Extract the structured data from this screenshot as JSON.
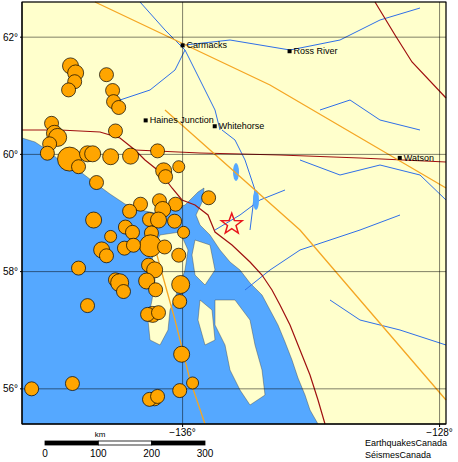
{
  "chart_data": {
    "type": "map",
    "xlim": [
      -141,
      -127.8
    ],
    "ylim": [
      55.4,
      62.6
    ],
    "xticks": [
      {
        "value": -136,
        "label": "−136°"
      },
      {
        "value": -128,
        "label": "−128°"
      }
    ],
    "yticks": [
      {
        "value": 56,
        "label": "56°"
      },
      {
        "value": 58,
        "label": "58°"
      },
      {
        "value": 60,
        "label": "60°"
      },
      {
        "value": 62,
        "label": "62°"
      }
    ],
    "grid": true,
    "series": [
      {
        "type": "scatter",
        "marker": "circle",
        "color": "#ffa500",
        "x": [
          -139.49,
          -139.33,
          -139.36,
          -139.55,
          -138.37,
          -138.18,
          -138.15,
          -137.99,
          -140.08,
          -139.99,
          -139.89,
          -140.14,
          -140.21,
          -139.52,
          -138.96,
          -138.8,
          -139.24,
          -138.68,
          -137.62,
          -138.24,
          -138.09,
          -136.78,
          -136.59,
          -136.53,
          -136.12,
          -136.72,
          -136.22,
          -136.62,
          -137.31,
          -137.65,
          -135.19,
          -137.03,
          -136.75,
          -136.25,
          -138.77,
          -137.78,
          -137.56,
          -136.97,
          -138.24,
          -138.52,
          -138.37,
          -137.81,
          -137.0,
          -136.56,
          -135.97,
          -136.12,
          -137.53,
          -139.24,
          -138.09,
          -137.96,
          -137.06,
          -136.87,
          -137.12,
          -136.06,
          -136.84,
          -137.84,
          -138.96,
          -136.09,
          -136.93,
          -137.09,
          -136.75,
          -136.03,
          -135.69,
          -136.09,
          -136.87,
          -137.03,
          -136.78,
          -140.7,
          -139.43
        ],
        "y": [
          61.51,
          61.39,
          61.24,
          61.1,
          61.36,
          61.09,
          60.9,
          60.8,
          60.53,
          60.36,
          60.29,
          60.18,
          60.02,
          59.92,
          60.01,
          60.01,
          59.79,
          59.52,
          59.97,
          59.96,
          60.4,
          60.06,
          59.72,
          59.62,
          59.79,
          59.21,
          59.15,
          59.06,
          59.15,
          59.03,
          59.26,
          58.89,
          58.88,
          58.86,
          58.88,
          58.76,
          58.67,
          58.66,
          58.6,
          58.37,
          58.27,
          58.4,
          58.44,
          58.42,
          58.67,
          58.28,
          58.45,
          58.06,
          57.86,
          57.81,
          58.11,
          58.03,
          57.84,
          57.78,
          57.69,
          57.66,
          57.42,
          57.49,
          57.27,
          57.27,
          57.3,
          56.59,
          56.1,
          55.97,
          55.83,
          55.82,
          55.87,
          56.0,
          56.09
        ],
        "size": [
          5.6,
          5.6,
          5.3,
          5.3,
          5.3,
          5.3,
          5.3,
          5.3,
          5.3,
          5.6,
          5.9,
          5.3,
          5.3,
          6.8,
          5.6,
          5.6,
          5.3,
          5.3,
          5.6,
          5.6,
          5.3,
          5.3,
          5.6,
          5.3,
          5.0,
          5.3,
          5.3,
          5.6,
          5.3,
          5.3,
          5.3,
          5.3,
          5.6,
          5.3,
          5.6,
          5.3,
          5.3,
          5.3,
          5.0,
          5.6,
          5.3,
          5.3,
          6.5,
          5.3,
          5.0,
          5.3,
          5.3,
          5.3,
          5.3,
          5.9,
          5.3,
          5.6,
          5.6,
          5.9,
          5.3,
          5.3,
          5.3,
          5.3,
          5.6,
          5.3,
          5.3,
          5.6,
          5.0,
          5.3,
          5.3,
          5.3,
          5.3,
          5.3,
          5.3
        ]
      },
      {
        "type": "scatter",
        "marker": "star",
        "color": "#e8141c",
        "x": [
          -134.47
        ],
        "y": [
          58.81
        ]
      },
      {
        "type": "scatter",
        "marker": "square",
        "color": "#000000",
        "x": [
          -136.0,
          -132.67,
          -137.15,
          -135.0,
          -129.24
        ],
        "y": [
          61.86,
          61.76,
          60.58,
          60.48,
          59.94
        ],
        "labels": [
          "Carmacks",
          "Ross River",
          "Haines Junction",
          "Whitehorse",
          "Watson"
        ]
      }
    ],
    "scale_bar": {
      "label": "km",
      "ticks": [
        0,
        100,
        200,
        300
      ]
    },
    "credits": [
      "EarthquakesCanada",
      "SéismesCanada"
    ]
  }
}
